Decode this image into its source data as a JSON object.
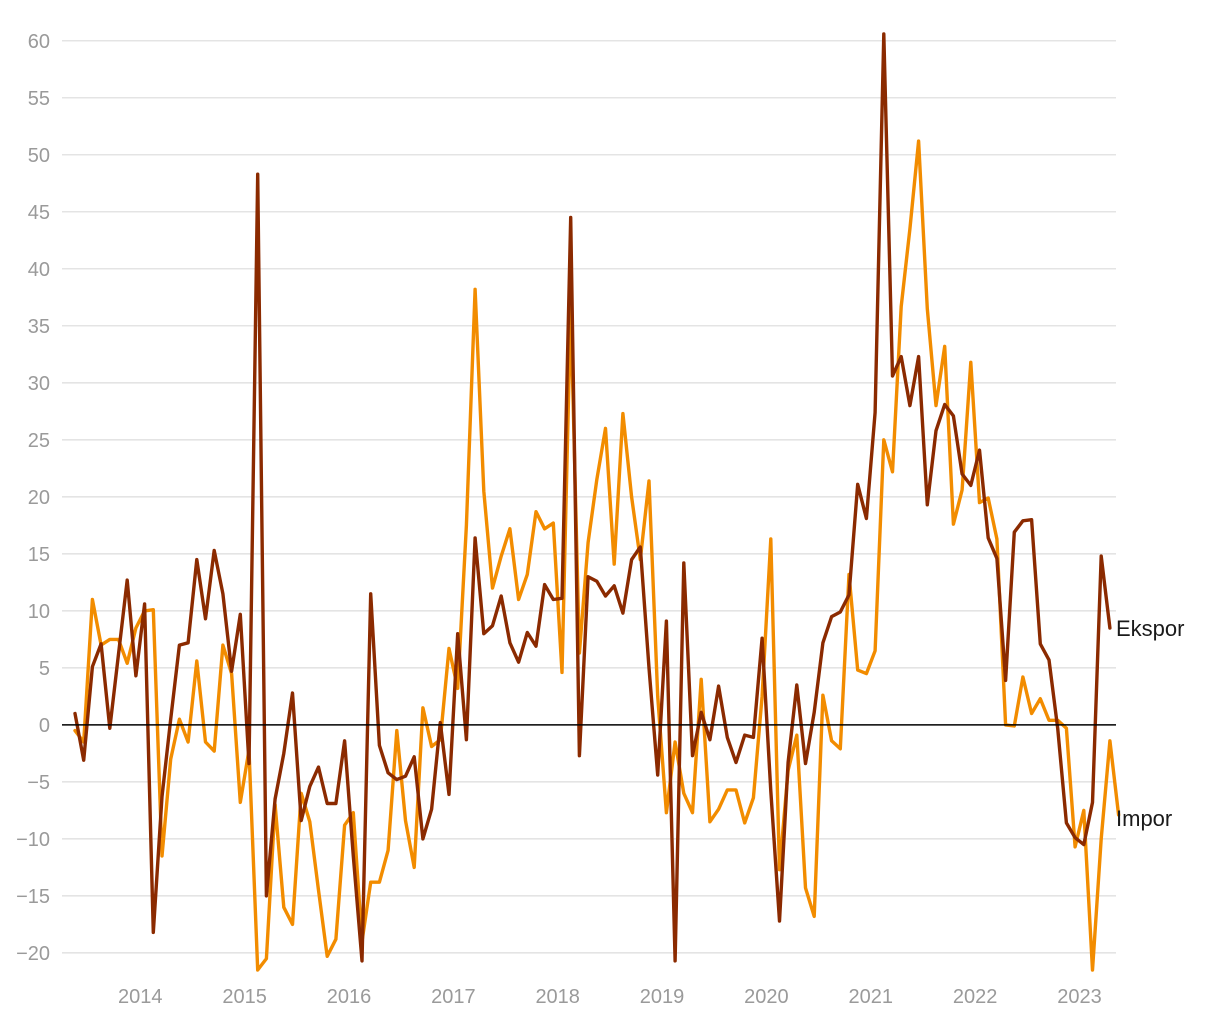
{
  "chart_data": {
    "type": "line",
    "title": "",
    "xlabel": "",
    "ylabel": "",
    "ylim": [
      -21.5,
      62
    ],
    "yticks": [
      60,
      55,
      50,
      45,
      40,
      35,
      30,
      25,
      20,
      15,
      10,
      5,
      0,
      -5,
      -10,
      -15,
      -20
    ],
    "ytick_labels": [
      "60",
      "55",
      "50",
      "45",
      "40",
      "35",
      "30",
      "25",
      "20",
      "15",
      "10",
      "5",
      "0",
      "−5",
      "−10",
      "−15",
      "−20"
    ],
    "xrange": [
      2013.25,
      2023.35
    ],
    "xticks": [
      2014,
      2015,
      2016,
      2017,
      2018,
      2019,
      2020,
      2021,
      2022,
      2023
    ],
    "xtick_labels": [
      "2014",
      "2015",
      "2016",
      "2017",
      "2018",
      "2019",
      "2020",
      "2021",
      "2022",
      "2023"
    ],
    "x_start": 2013.375,
    "x_step": 0.0833333,
    "grid": true,
    "series": [
      {
        "name": "Impor",
        "color": "#f28c00",
        "values": [
          -0.5,
          -1.5,
          11.0,
          7.0,
          7.5,
          7.5,
          5.4,
          8.5,
          10.0,
          10.1,
          -11.5,
          -3.0,
          0.5,
          -1.5,
          5.6,
          -1.5,
          -2.3,
          7.0,
          4.5,
          -6.8,
          -2.2,
          -21.5,
          -20.5,
          -7.0,
          -16.0,
          -17.5,
          -6.0,
          -8.5,
          -14.5,
          -20.3,
          -18.8,
          -8.8,
          -7.7,
          -19.0,
          -13.8,
          -13.8,
          -11.0,
          -0.5,
          -8.4,
          -12.5,
          1.5,
          -1.9,
          -1.3,
          6.7,
          3.2,
          17.5,
          38.2,
          20.5,
          12.0,
          14.8,
          17.2,
          11.0,
          13.2,
          18.7,
          17.2,
          17.7,
          4.6,
          36.8,
          6.3,
          16.0,
          21.5,
          26.0,
          14.1,
          27.3,
          20.0,
          14.5,
          21.4,
          2.5,
          -7.7,
          -1.5,
          -6.0,
          -7.7,
          4.0,
          -8.5,
          -7.4,
          -5.7,
          -5.7,
          -8.6,
          -6.4,
          2.5,
          16.3,
          -12.7,
          -4.0,
          -0.9,
          -14.3,
          -16.8,
          2.6,
          -1.4,
          -2.1,
          13.2,
          4.8,
          4.5,
          6.5,
          25.0,
          22.2,
          36.7,
          43.5,
          51.2,
          36.5,
          28.0,
          33.2,
          17.6,
          20.6,
          31.8,
          19.5,
          19.9,
          16.3,
          0.0,
          -0.1,
          4.2,
          1.0,
          2.3,
          0.4,
          0.4,
          -0.3,
          -10.7,
          -7.5,
          -21.5,
          -10.0,
          -1.4,
          -7.9
        ]
      },
      {
        "name": "Ekspor",
        "color": "#8b2a00",
        "values": [
          1.0,
          -3.1,
          5.1,
          7.1,
          -0.3,
          6.2,
          12.7,
          4.3,
          10.6,
          -18.2,
          -6.3,
          0.5,
          7.0,
          7.2,
          14.5,
          9.3,
          15.3,
          11.5,
          4.7,
          9.7,
          -3.4,
          48.3,
          -15.0,
          -6.5,
          -2.5,
          2.8,
          -8.4,
          -5.4,
          -3.7,
          -6.9,
          -6.9,
          -1.4,
          -11.5,
          -20.7,
          11.5,
          -1.8,
          -4.2,
          -4.8,
          -4.5,
          -2.8,
          -10.0,
          -7.4,
          0.2,
          -6.1,
          8.0,
          -1.3,
          16.4,
          8.0,
          8.7,
          11.3,
          7.2,
          5.5,
          8.1,
          6.9,
          12.3,
          11.0,
          11.1,
          44.5,
          -2.7,
          13.0,
          12.6,
          11.3,
          12.2,
          9.8,
          14.5,
          15.6,
          5.0,
          -4.4,
          9.1,
          -20.7,
          14.2,
          -2.7,
          1.1,
          -1.3,
          3.4,
          -1.1,
          -3.3,
          -0.9,
          -1.1,
          7.6,
          -5.8,
          -17.2,
          -3.3,
          3.5,
          -3.4,
          1.1,
          7.2,
          9.5,
          9.9,
          11.4,
          21.1,
          18.1,
          27.4,
          60.6,
          30.6,
          32.3,
          28.0,
          32.3,
          19.3,
          25.8,
          28.1,
          27.1,
          22.0,
          21.0,
          24.1,
          16.4,
          14.6,
          3.9,
          16.9,
          17.9,
          18.0,
          7.1,
          5.7,
          -0.3,
          -8.6,
          -9.9,
          -10.5,
          -6.8,
          14.8,
          8.5
        ]
      }
    ]
  }
}
